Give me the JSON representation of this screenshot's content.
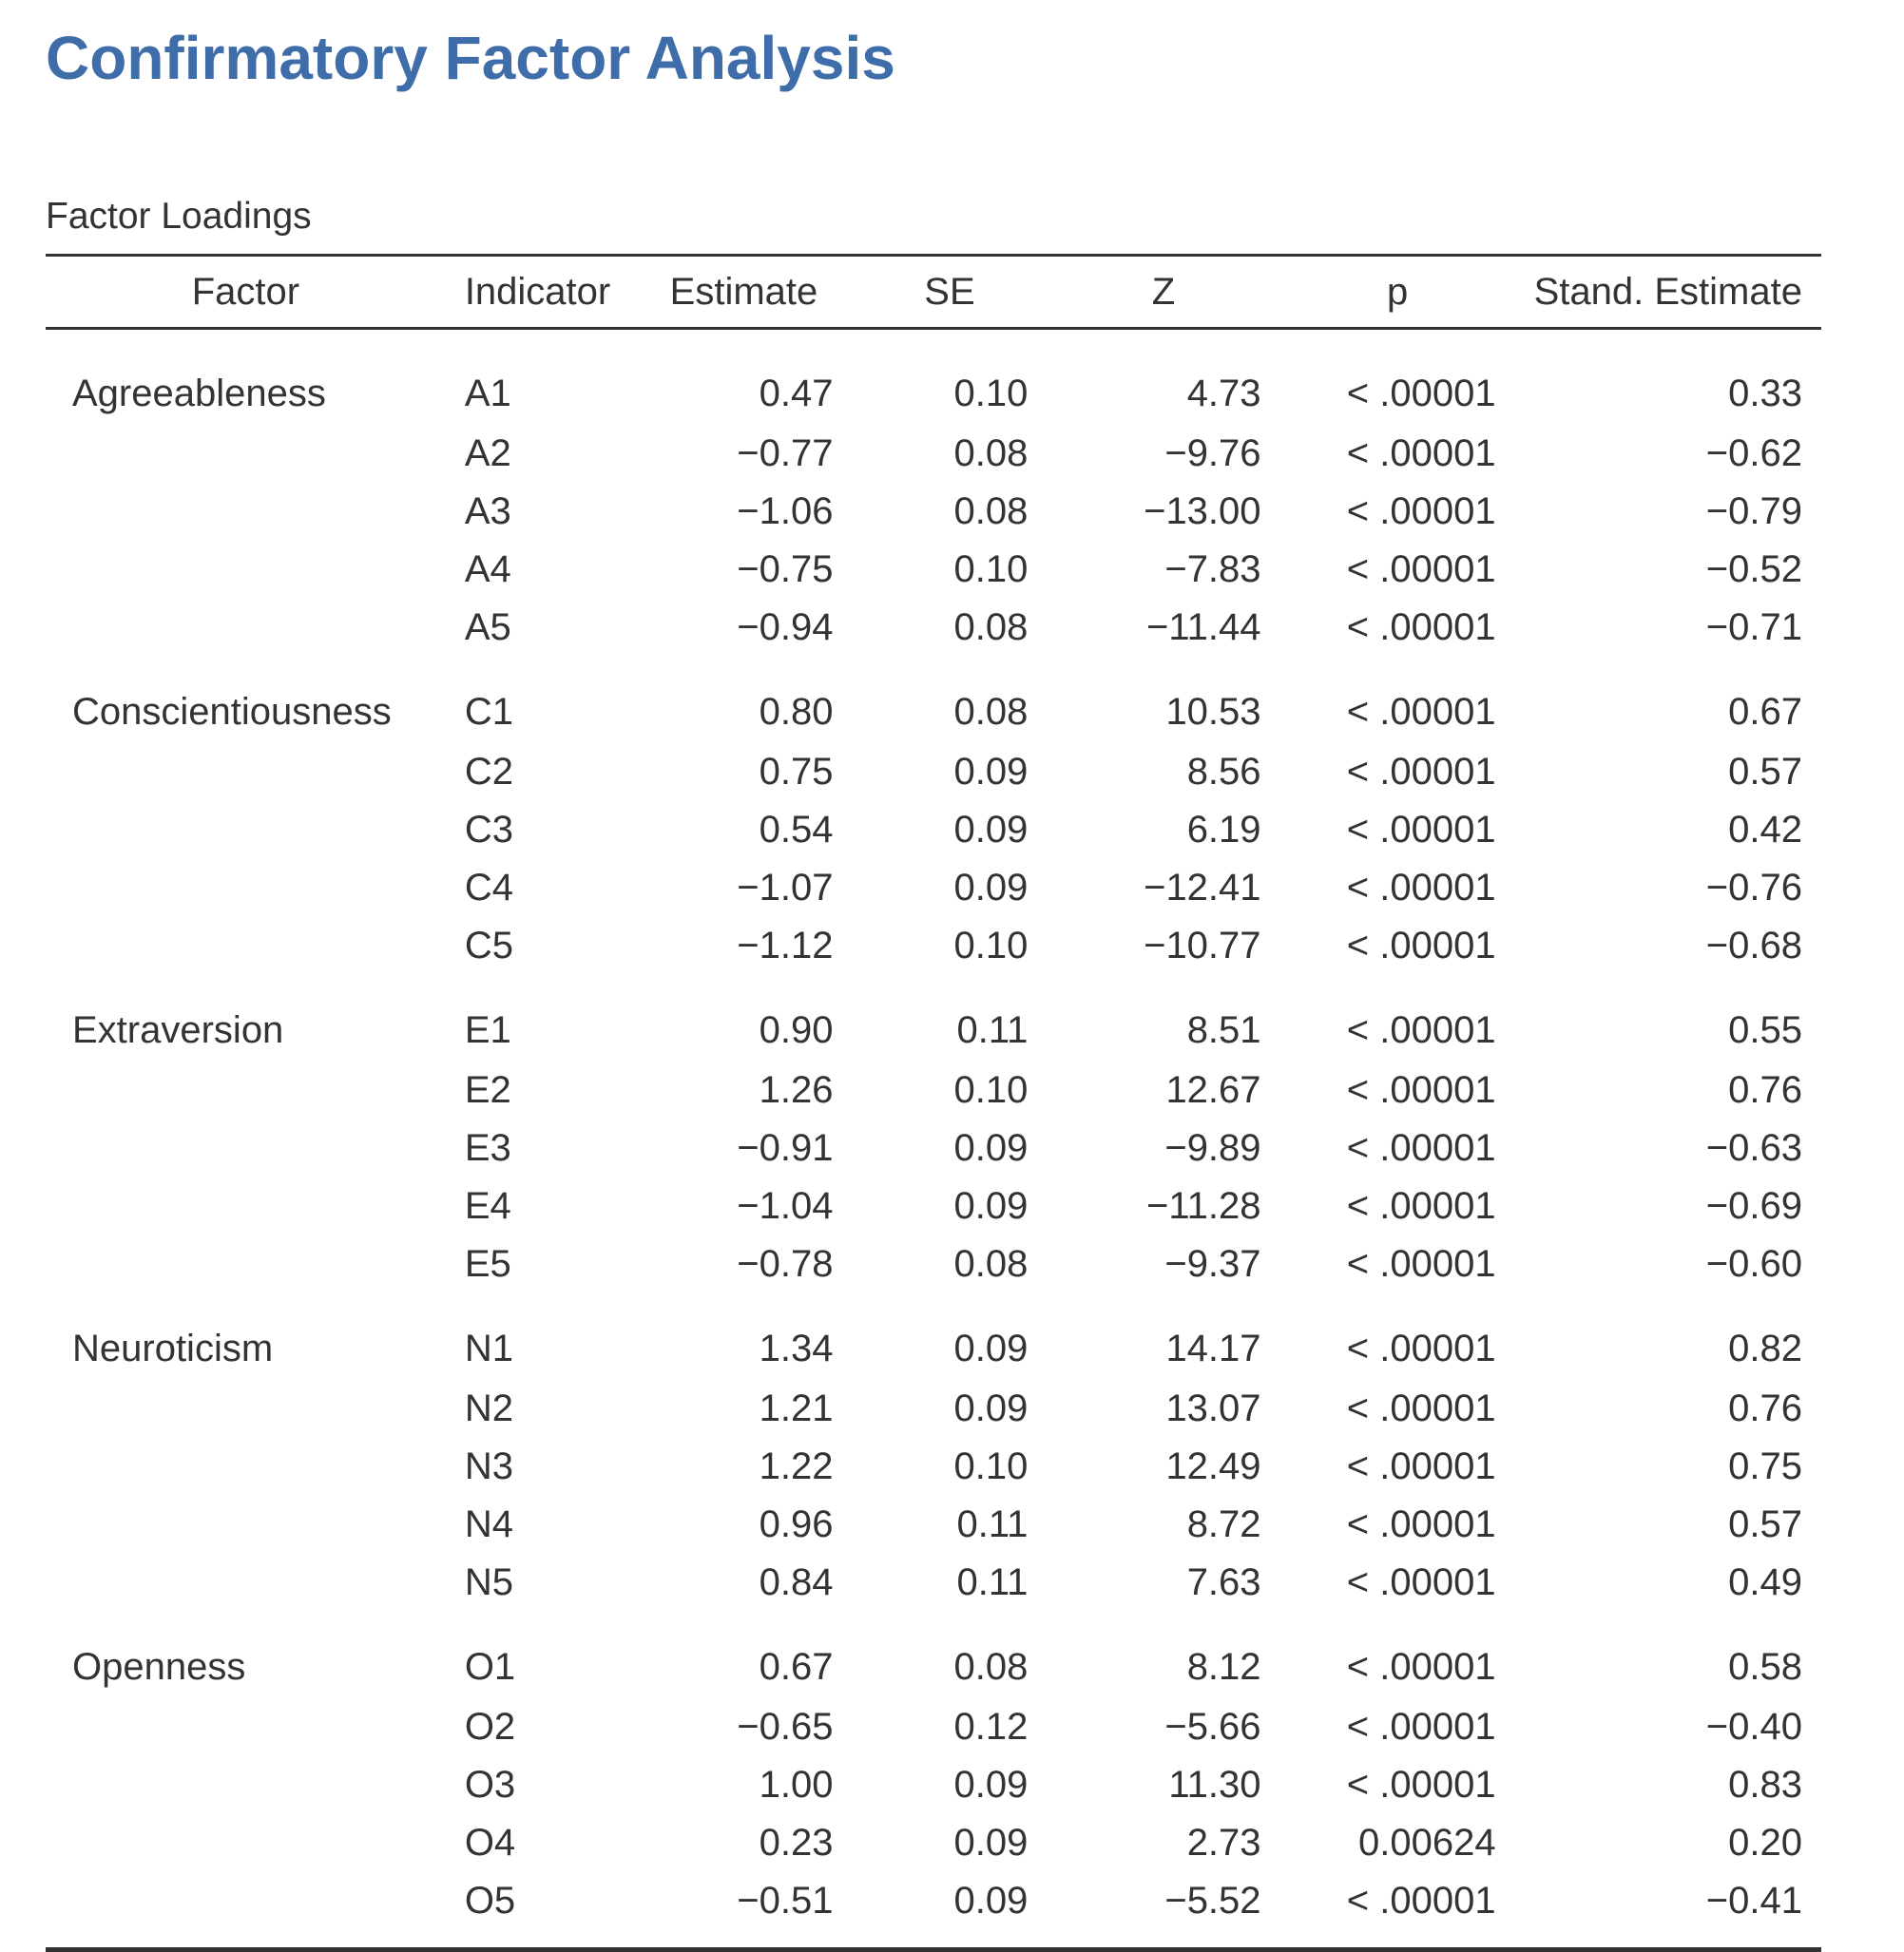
{
  "title": "Confirmatory Factor Analysis",
  "table_caption": "Factor Loadings",
  "colors": {
    "title": "#3e6da9",
    "text": "#333333",
    "rule": "#333333"
  },
  "columns": [
    "Factor",
    "Indicator",
    "Estimate",
    "SE",
    "Z",
    "p",
    "Stand. Estimate"
  ],
  "rows": [
    {
      "factor": "Agreeableness",
      "indicator": "A1",
      "estimate": "0.47",
      "se": "0.10",
      "z": "4.73",
      "p": "< .00001",
      "std": "0.33"
    },
    {
      "factor": "",
      "indicator": "A2",
      "estimate": "−0.77",
      "se": "0.08",
      "z": "−9.76",
      "p": "< .00001",
      "std": "−0.62"
    },
    {
      "factor": "",
      "indicator": "A3",
      "estimate": "−1.06",
      "se": "0.08",
      "z": "−13.00",
      "p": "< .00001",
      "std": "−0.79"
    },
    {
      "factor": "",
      "indicator": "A4",
      "estimate": "−0.75",
      "se": "0.10",
      "z": "−7.83",
      "p": "< .00001",
      "std": "−0.52"
    },
    {
      "factor": "",
      "indicator": "A5",
      "estimate": "−0.94",
      "se": "0.08",
      "z": "−11.44",
      "p": "< .00001",
      "std": "−0.71"
    },
    {
      "factor": "Conscientiousness",
      "indicator": "C1",
      "estimate": "0.80",
      "se": "0.08",
      "z": "10.53",
      "p": "< .00001",
      "std": "0.67"
    },
    {
      "factor": "",
      "indicator": "C2",
      "estimate": "0.75",
      "se": "0.09",
      "z": "8.56",
      "p": "< .00001",
      "std": "0.57"
    },
    {
      "factor": "",
      "indicator": "C3",
      "estimate": "0.54",
      "se": "0.09",
      "z": "6.19",
      "p": "< .00001",
      "std": "0.42"
    },
    {
      "factor": "",
      "indicator": "C4",
      "estimate": "−1.07",
      "se": "0.09",
      "z": "−12.41",
      "p": "< .00001",
      "std": "−0.76"
    },
    {
      "factor": "",
      "indicator": "C5",
      "estimate": "−1.12",
      "se": "0.10",
      "z": "−10.77",
      "p": "< .00001",
      "std": "−0.68"
    },
    {
      "factor": "Extraversion",
      "indicator": "E1",
      "estimate": "0.90",
      "se": "0.11",
      "z": "8.51",
      "p": "< .00001",
      "std": "0.55"
    },
    {
      "factor": "",
      "indicator": "E2",
      "estimate": "1.26",
      "se": "0.10",
      "z": "12.67",
      "p": "< .00001",
      "std": "0.76"
    },
    {
      "factor": "",
      "indicator": "E3",
      "estimate": "−0.91",
      "se": "0.09",
      "z": "−9.89",
      "p": "< .00001",
      "std": "−0.63"
    },
    {
      "factor": "",
      "indicator": "E4",
      "estimate": "−1.04",
      "se": "0.09",
      "z": "−11.28",
      "p": "< .00001",
      "std": "−0.69"
    },
    {
      "factor": "",
      "indicator": "E5",
      "estimate": "−0.78",
      "se": "0.08",
      "z": "−9.37",
      "p": "< .00001",
      "std": "−0.60"
    },
    {
      "factor": "Neuroticism",
      "indicator": "N1",
      "estimate": "1.34",
      "se": "0.09",
      "z": "14.17",
      "p": "< .00001",
      "std": "0.82"
    },
    {
      "factor": "",
      "indicator": "N2",
      "estimate": "1.21",
      "se": "0.09",
      "z": "13.07",
      "p": "< .00001",
      "std": "0.76"
    },
    {
      "factor": "",
      "indicator": "N3",
      "estimate": "1.22",
      "se": "0.10",
      "z": "12.49",
      "p": "< .00001",
      "std": "0.75"
    },
    {
      "factor": "",
      "indicator": "N4",
      "estimate": "0.96",
      "se": "0.11",
      "z": "8.72",
      "p": "< .00001",
      "std": "0.57"
    },
    {
      "factor": "",
      "indicator": "N5",
      "estimate": "0.84",
      "se": "0.11",
      "z": "7.63",
      "p": "< .00001",
      "std": "0.49"
    },
    {
      "factor": "Openness",
      "indicator": "O1",
      "estimate": "0.67",
      "se": "0.08",
      "z": "8.12",
      "p": "< .00001",
      "std": "0.58"
    },
    {
      "factor": "",
      "indicator": "O2",
      "estimate": "−0.65",
      "se": "0.12",
      "z": "−5.66",
      "p": "< .00001",
      "std": "−0.40"
    },
    {
      "factor": "",
      "indicator": "O3",
      "estimate": "1.00",
      "se": "0.09",
      "z": "11.30",
      "p": "< .00001",
      "std": "0.83"
    },
    {
      "factor": "",
      "indicator": "O4",
      "estimate": "0.23",
      "se": "0.09",
      "z": "2.73",
      "p": "0.00624",
      "std": "0.20"
    },
    {
      "factor": "",
      "indicator": "O5",
      "estimate": "−0.51",
      "se": "0.09",
      "z": "−5.52",
      "p": "< .00001",
      "std": "−0.41"
    }
  ]
}
